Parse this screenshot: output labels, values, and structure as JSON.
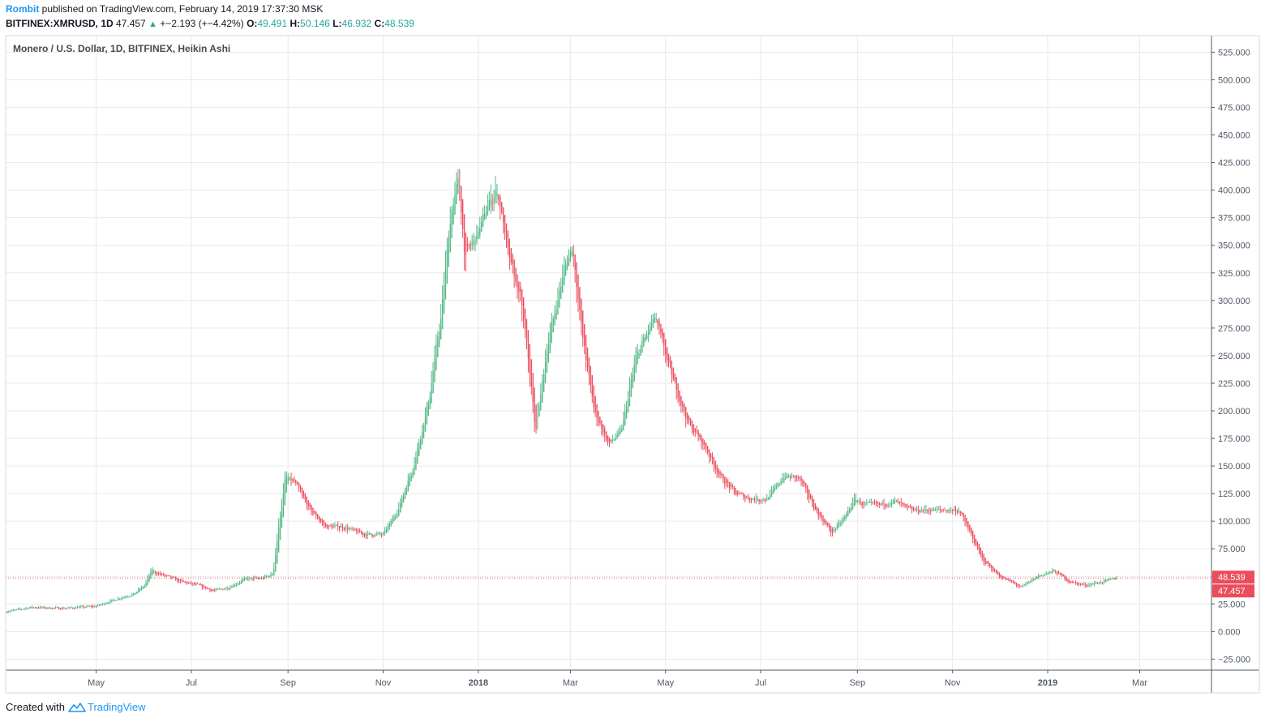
{
  "header": {
    "publisher": "Rombit",
    "published_text": "published on TradingView.com, February 14, 2019 17:37:30 MSK",
    "symbol_interval": "BITFINEX:XMRUSD, 1D",
    "last": "47.457",
    "change": "+−2.193 (+−4.42%)",
    "o_label": "O:",
    "o_value": "49.491",
    "h_label": "H:",
    "h_value": "50.146",
    "l_label": "L:",
    "l_value": "46.932",
    "c_label": "C:",
    "c_value": "48.539"
  },
  "legend": "Monero / U.S. Dollar, 1D, BITFINEX, Heikin Ashi",
  "footer": {
    "created_with": "Created with",
    "brand": "TradingView"
  },
  "colors": {
    "up": "#53b987",
    "down": "#eb4d5c",
    "grid": "#e9e9ea",
    "axis": "#4f5966"
  },
  "chart_data": {
    "type": "candlestick",
    "style": "Heikin Ashi",
    "title": "Monero / U.S. Dollar, 1D, BITFINEX, Heikin Ashi",
    "y_ticks": [
      -25,
      0,
      25,
      50,
      75,
      100,
      125,
      150,
      175,
      200,
      225,
      250,
      275,
      300,
      325,
      350,
      375,
      400,
      425,
      450,
      475,
      500,
      525
    ],
    "y_tick_labels": [
      "−25.000",
      "0.000",
      "25.000",
      "50.000",
      "75.000",
      "100.000",
      "125.000",
      "150.000",
      "175.000",
      "200.000",
      "225.000",
      "250.000",
      "275.000",
      "300.000",
      "325.000",
      "350.000",
      "375.000",
      "400.000",
      "425.000",
      "450.000",
      "475.000",
      "500.000",
      "525.000"
    ],
    "ylim": [
      -35,
      540
    ],
    "x_ticks": [
      "2017-05-01",
      "2017-07-01",
      "2017-09-01",
      "2017-11-01",
      "2018-01-01",
      "2018-03-01",
      "2018-05-01",
      "2018-07-01",
      "2018-09-01",
      "2018-11-01",
      "2019-01-01",
      "2019-03-01"
    ],
    "x_tick_labels": [
      "May",
      "Jul",
      "Sep",
      "Nov",
      "2018",
      "Mar",
      "May",
      "Jul",
      "Sep",
      "Nov",
      "2019",
      "Mar"
    ],
    "x_tick_bold": [
      false,
      false,
      false,
      false,
      true,
      false,
      false,
      false,
      false,
      false,
      true,
      false
    ],
    "xlim": [
      "2017-03-04",
      "2019-04-16"
    ],
    "series_approx_close": {
      "dates": [
        "2017-03-04",
        "2017-03-20",
        "2017-04-10",
        "2017-05-01",
        "2017-05-15",
        "2017-05-25",
        "2017-06-01",
        "2017-06-05",
        "2017-06-15",
        "2017-06-25",
        "2017-07-05",
        "2017-07-15",
        "2017-07-25",
        "2017-08-05",
        "2017-08-15",
        "2017-08-22",
        "2017-08-26",
        "2017-08-30",
        "2017-09-05",
        "2017-09-15",
        "2017-09-25",
        "2017-10-05",
        "2017-10-20",
        "2017-11-01",
        "2017-11-10",
        "2017-11-20",
        "2017-11-30",
        "2017-12-08",
        "2017-12-14",
        "2017-12-19",
        "2017-12-23",
        "2017-12-31",
        "2018-01-08",
        "2018-01-13",
        "2018-01-20",
        "2018-01-28",
        "2018-02-03",
        "2018-02-06",
        "2018-02-14",
        "2018-02-25",
        "2018-03-02",
        "2018-03-08",
        "2018-03-16",
        "2018-03-25",
        "2018-04-02",
        "2018-04-12",
        "2018-04-24",
        "2018-05-05",
        "2018-05-15",
        "2018-05-25",
        "2018-06-05",
        "2018-06-15",
        "2018-06-25",
        "2018-07-05",
        "2018-07-15",
        "2018-07-25",
        "2018-08-05",
        "2018-08-15",
        "2018-08-22",
        "2018-08-30",
        "2018-09-05",
        "2018-09-15",
        "2018-09-25",
        "2018-10-05",
        "2018-10-20",
        "2018-11-05",
        "2018-11-15",
        "2018-11-20",
        "2018-12-01",
        "2018-12-15",
        "2018-12-25",
        "2019-01-05",
        "2019-01-15",
        "2019-01-25",
        "2019-02-05",
        "2019-02-14"
      ],
      "values": [
        18,
        22,
        21,
        23,
        30,
        34,
        42,
        55,
        50,
        45,
        42,
        37,
        40,
        48,
        48,
        52,
        100,
        140,
        135,
        110,
        95,
        95,
        88,
        88,
        110,
        150,
        210,
        290,
        380,
        410,
        340,
        360,
        390,
        400,
        340,
        300,
        230,
        180,
        260,
        330,
        350,
        270,
        200,
        170,
        180,
        250,
        285,
        230,
        190,
        170,
        140,
        125,
        120,
        120,
        140,
        140,
        110,
        90,
        100,
        120,
        115,
        115,
        118,
        110,
        110,
        110,
        80,
        65,
        50,
        40,
        50,
        55,
        45,
        42,
        45,
        48.539
      ]
    },
    "last_price_labels": [
      "48.539",
      "47.457"
    ],
    "last_price": 48.539,
    "grid": true
  }
}
